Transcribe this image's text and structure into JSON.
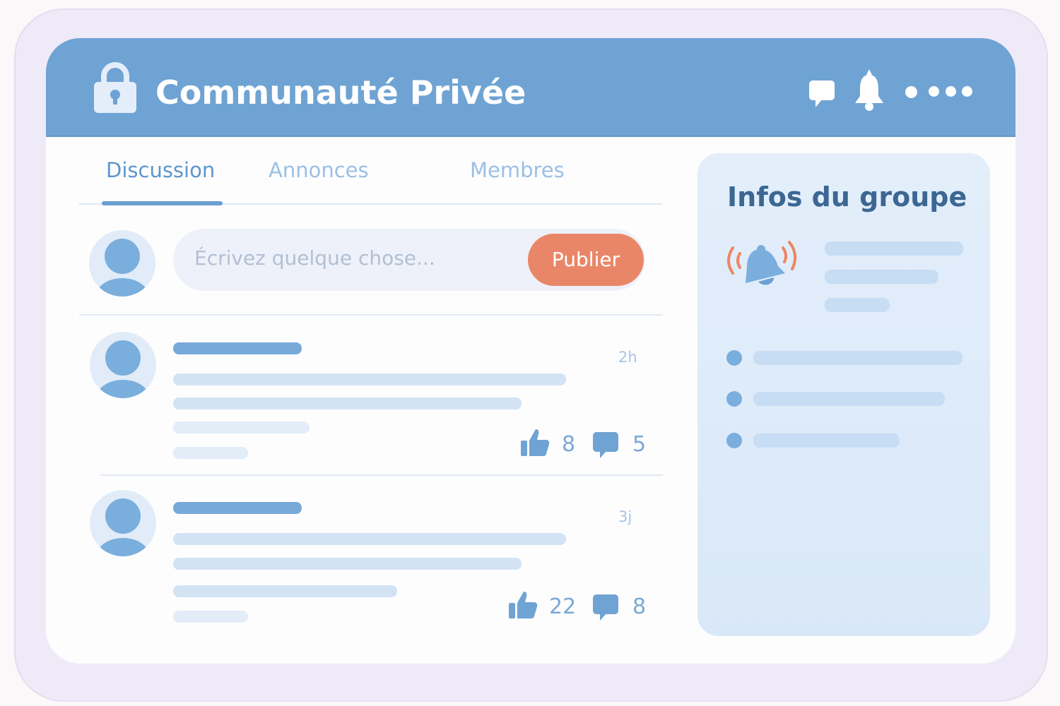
{
  "header": {
    "title": "Communauté Privée",
    "icons": [
      "lock-icon",
      "chat-icon",
      "bell-icon",
      "more-dots-icon"
    ]
  },
  "tabs": [
    {
      "label": "Discussion",
      "active": true
    },
    {
      "label": "Annonces",
      "active": false
    },
    {
      "label": "Membres",
      "active": false
    }
  ],
  "composer": {
    "placeholder": "Écrivez quelque chose...",
    "publish_label": "Publier"
  },
  "posts": [
    {
      "time": "2h",
      "likes": "8",
      "comments": "5"
    },
    {
      "time": "3j",
      "likes": "22",
      "comments": "8"
    }
  ],
  "sidebar": {
    "title": "Infos du groupe"
  },
  "colors": {
    "header": "#6fa3d3",
    "accent": "#ea8668",
    "text_blue": "#3c6793"
  }
}
